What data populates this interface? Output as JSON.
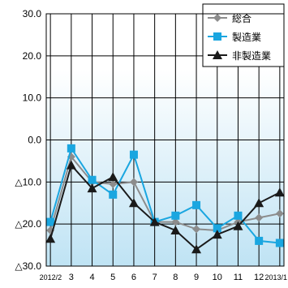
{
  "chart_data": {
    "type": "line",
    "categories": [
      "2012/2",
      "3",
      "4",
      "5",
      "6",
      "7",
      "8",
      "9",
      "10",
      "11",
      "12",
      "2013/1"
    ],
    "ylim": [
      -30,
      30
    ],
    "y_ticks": [
      30,
      20,
      10,
      0,
      -10,
      -20,
      -30
    ],
    "y_tick_labels": [
      "30.0",
      "20.0",
      "10.0",
      "0.0",
      "△10.0",
      "△20.0",
      "△30.0"
    ],
    "grid": true,
    "legend_position": "top-right",
    "background": "gradient white to light blue",
    "series": [
      {
        "name": "総合",
        "color": "#8c8c8c",
        "marker": "diamond",
        "values": [
          -21.5,
          -4.0,
          -10.0,
          -10.5,
          -10.0,
          -19.5,
          -19.5,
          -21.2,
          -21.5,
          -19.5,
          -18.5,
          -17.5
        ]
      },
      {
        "name": "製造業",
        "color": "#1aa6e0",
        "marker": "square",
        "values": [
          -19.5,
          -2.0,
          -9.5,
          -13.0,
          -3.5,
          -19.5,
          -18.0,
          -15.5,
          -21.0,
          -18.0,
          -24.0,
          -24.5
        ]
      },
      {
        "name": "非製造業",
        "color": "#1a1a1a",
        "marker": "triangle",
        "values": [
          -23.5,
          -6.0,
          -11.5,
          -8.8,
          -15.0,
          -19.5,
          -21.5,
          -26.0,
          -22.5,
          -20.5,
          -15.0,
          -12.5
        ]
      }
    ]
  }
}
